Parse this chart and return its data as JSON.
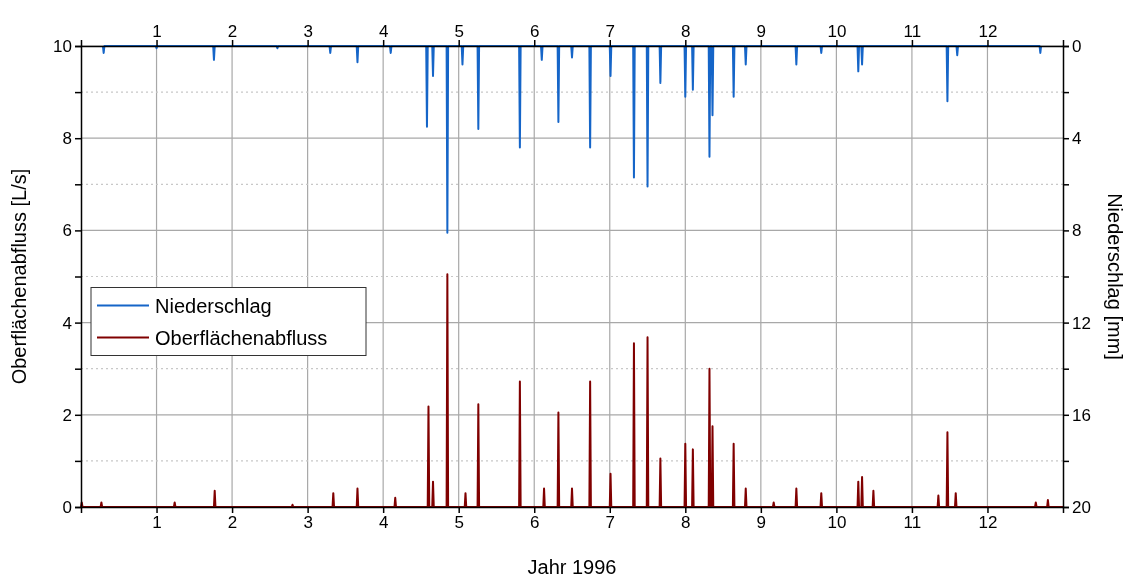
{
  "chart_data": {
    "type": "line",
    "xlabel": "Jahr 1996",
    "ylabel": "Oberflächenabfluss [L/s]",
    "y2label": "Niederschlag [mm]",
    "xlim": [
      0,
      13
    ],
    "xticks": [
      1,
      2,
      3,
      4,
      5,
      6,
      7,
      8,
      9,
      10,
      11,
      12
    ],
    "x2lim": [
      0,
      13
    ],
    "x2ticks": [
      1,
      2,
      3,
      4,
      5,
      6,
      7,
      8,
      9,
      10,
      11,
      12
    ],
    "ylim": [
      0,
      10
    ],
    "yticks": [
      0,
      {
        "value": 1,
        "label": null
      },
      2,
      {
        "value": 3,
        "label": null
      },
      4,
      {
        "value": 5,
        "label": null
      },
      6,
      {
        "value": 7,
        "label": null
      },
      8,
      {
        "value": 9,
        "label": null
      },
      10
    ],
    "y2lim": [
      20,
      0
    ],
    "y2ticks": [
      0,
      {
        "value": 2,
        "label": null
      },
      4,
      {
        "value": 6,
        "label": null
      },
      8,
      {
        "value": 10,
        "label": null
      },
      12,
      {
        "value": 14,
        "label": null
      },
      16,
      {
        "value": 18,
        "label": null
      },
      20
    ],
    "grid": true,
    "legend": "left",
    "marker": "none",
    "line_style": "solid",
    "series": [
      {
        "name": "Niederschlag",
        "color": "#1565c8",
        "axis": "y2",
        "x": [
          0.29,
          0.3,
          0.31,
          0.99,
          1,
          1.01,
          1.75,
          1.76,
          1.77,
          2.59,
          2.6,
          2.61,
          3.29,
          3.3,
          3.31,
          3.65,
          3.66,
          3.67,
          4.09,
          4.1,
          4.11,
          4.57,
          4.58,
          4.59,
          4.65,
          4.66,
          4.67,
          4.84,
          4.85,
          4.86,
          5.04,
          5.05,
          5.06,
          5.25,
          5.26,
          5.27,
          5.8,
          5.81,
          5.82,
          6.09,
          6.1,
          6.11,
          6.31,
          6.32,
          6.33,
          6.49,
          6.5,
          6.51,
          6.73,
          6.74,
          6.75,
          7,
          7.01,
          7.02,
          7.31,
          7.32,
          7.33,
          7.49,
          7.5,
          7.51,
          7.66,
          7.67,
          7.68,
          7.99,
          8,
          8.01,
          8.09,
          8.1,
          8.11,
          8.31,
          8.32,
          8.33,
          8.35,
          8.36,
          8.37,
          8.63,
          8.64,
          8.65,
          8.79,
          8.8,
          8.81,
          9.46,
          9.47,
          9.48,
          9.79,
          9.8,
          9.81,
          10.28,
          10.29,
          10.3,
          10.33,
          10.34,
          10.35,
          11.46,
          11.47,
          11.48,
          11.59,
          11.6,
          11.61,
          12.69,
          12.7,
          12.71
        ],
        "values": [
          0,
          0.3,
          0,
          0,
          0.1,
          0,
          0,
          0.6,
          0,
          0,
          0.1,
          0,
          0,
          0.3,
          0,
          0,
          0.7,
          0,
          0,
          0.3,
          0,
          0,
          3.5,
          0,
          0,
          1.3,
          0,
          0,
          8.1,
          0,
          0,
          0.8,
          0,
          0,
          3.6,
          0,
          0,
          4.4,
          0,
          0,
          0.6,
          0,
          0,
          3.3,
          0,
          0,
          0.5,
          0,
          0,
          4.4,
          0,
          0,
          1.3,
          0,
          0,
          5.7,
          0,
          0,
          6.1,
          0,
          0,
          1.6,
          0,
          0,
          2.2,
          0,
          0,
          1.9,
          0,
          0,
          4.8,
          0,
          0,
          3.0,
          0,
          0,
          2.2,
          0,
          0,
          0.8,
          0,
          0,
          0.8,
          0,
          0,
          0.3,
          0,
          0,
          1.1,
          0,
          0,
          0.8,
          0,
          0,
          2.4,
          0,
          0,
          0.4,
          0,
          0,
          0.3,
          0
        ]
      },
      {
        "name": "Oberflächenabfluss",
        "color": "#800000",
        "x": [
          0,
          0.01,
          0.02,
          0.26,
          0.27,
          0.28,
          1.23,
          1.24,
          1.25,
          1.76,
          1.77,
          1.78,
          2.79,
          2.8,
          2.81,
          3.33,
          3.34,
          3.35,
          3.65,
          3.66,
          3.67,
          4.15,
          4.16,
          4.17,
          4.59,
          4.6,
          4.61,
          4.65,
          4.66,
          4.67,
          4.84,
          4.85,
          4.86,
          5.08,
          5.09,
          5.1,
          5.25,
          5.26,
          5.27,
          5.8,
          5.81,
          5.82,
          6.12,
          6.13,
          6.14,
          6.31,
          6.32,
          6.33,
          6.49,
          6.5,
          6.51,
          6.73,
          6.74,
          6.75,
          7,
          7.01,
          7.02,
          7.31,
          7.32,
          7.33,
          7.49,
          7.5,
          7.51,
          7.66,
          7.67,
          7.68,
          7.99,
          8,
          8.01,
          8.09,
          8.1,
          8.11,
          8.31,
          8.32,
          8.33,
          8.35,
          8.36,
          8.37,
          8.63,
          8.64,
          8.65,
          8.79,
          8.8,
          8.81,
          9.16,
          9.17,
          9.18,
          9.46,
          9.47,
          9.48,
          9.79,
          9.8,
          9.81,
          10.28,
          10.29,
          10.3,
          10.33,
          10.34,
          10.35,
          10.48,
          10.49,
          10.5,
          11.34,
          11.35,
          11.36,
          11.46,
          11.47,
          11.48,
          11.57,
          11.58,
          11.59,
          12.63,
          12.64,
          12.65,
          12.79,
          12.8,
          12.81,
          13
        ],
        "values": [
          0,
          0.1,
          0,
          0,
          0.1,
          0,
          0,
          0.1,
          0,
          0,
          0.35,
          0,
          0,
          0.05,
          0,
          0,
          0.3,
          0,
          0,
          0.4,
          0,
          0,
          0.2,
          0,
          0,
          2.18,
          0,
          0,
          0.55,
          0,
          0,
          5.05,
          0,
          0,
          0.3,
          0,
          0,
          2.23,
          0,
          0,
          2.72,
          0,
          0,
          0.4,
          0,
          0,
          2.05,
          0,
          0,
          0.4,
          0,
          0,
          2.72,
          0,
          0,
          0.72,
          0,
          0,
          3.55,
          0,
          0,
          3.68,
          0,
          0,
          1.05,
          0,
          0,
          1.37,
          0,
          0,
          1.25,
          0,
          0,
          3.0,
          0,
          0,
          1.75,
          0,
          0,
          1.37,
          0,
          0,
          0.4,
          0,
          0,
          0.1,
          0,
          0,
          0.4,
          0,
          0,
          0.3,
          0,
          0,
          0.55,
          0,
          0,
          0.65,
          0,
          0,
          0.35,
          0,
          0,
          0.25,
          0,
          0,
          1.62,
          0,
          0,
          0.3,
          0,
          0,
          0.1,
          0,
          0,
          0.15,
          0,
          0
        ]
      }
    ]
  }
}
